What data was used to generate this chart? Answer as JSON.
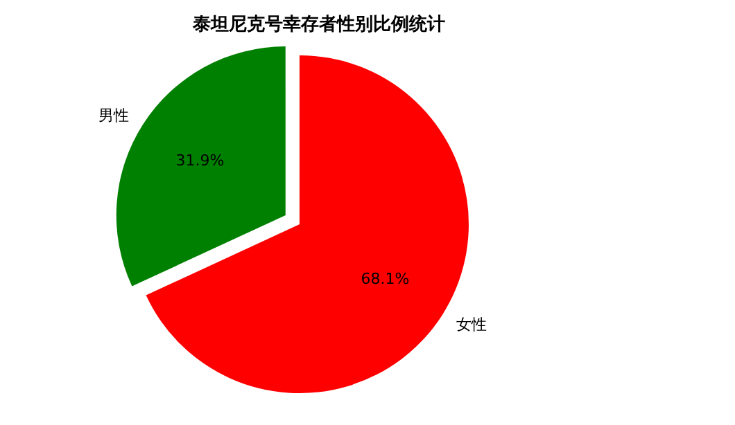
{
  "chart_data": {
    "type": "pie",
    "title": "泰坦尼克号幸存者性别比例统计",
    "categories": [
      "男性",
      "女性"
    ],
    "values": [
      31.9,
      68.1
    ],
    "colors": [
      "#008000",
      "#ff0000"
    ],
    "value_labels": [
      "31.9%",
      "68.1%"
    ]
  }
}
